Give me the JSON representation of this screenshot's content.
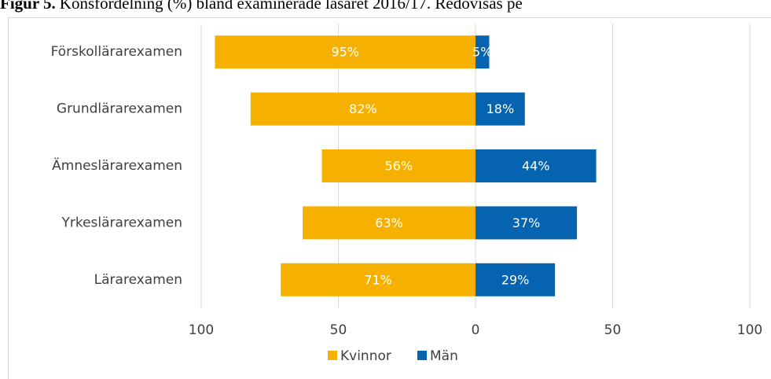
{
  "chart_data": {
    "type": "bar",
    "orientation": "horizontal",
    "stacked": true,
    "title_label": "Figur 5.",
    "title": "Könsfördelning (%) bland examinerade läsåret 2016/17. Redovisas pe",
    "categories": [
      "Förskollärarexamen",
      "Grundlärarexamen",
      "Ämneslärarexamen",
      "Yrkeslärarexamen",
      "Lärarexamen"
    ],
    "series": [
      {
        "name": "Kvinnor",
        "color": "#f6b100",
        "values": [
          -95,
          -82,
          -56,
          -63,
          -71
        ],
        "value_labels": [
          "95%",
          "82%",
          "56%",
          "63%",
          "71%"
        ]
      },
      {
        "name": "Män",
        "color": "#0563b0",
        "values": [
          5,
          18,
          44,
          37,
          29
        ],
        "value_labels": [
          "5%",
          "18%",
          "44%",
          "37%",
          "29%"
        ]
      }
    ],
    "xlim": [
      -100,
      100
    ],
    "xticks": [
      {
        "value": -100,
        "label": "100"
      },
      {
        "value": -50,
        "label": "50"
      },
      0,
      50,
      100
    ],
    "grid": true,
    "legend": "bottom"
  }
}
